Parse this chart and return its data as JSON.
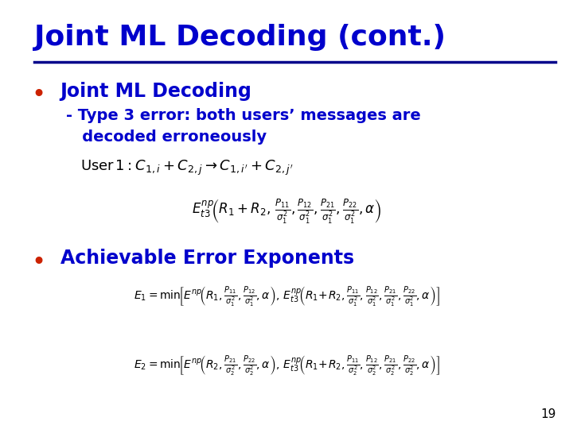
{
  "bg_color": "#ffffff",
  "title": "Joint ML Decoding (cont.)",
  "title_color": "#0000cc",
  "title_fontsize": 26,
  "line_color": "#00008B",
  "bullet_color": "#cc2200",
  "bullet1_text": "Joint ML Decoding",
  "bullet1_color": "#0000cc",
  "sub_bullet_text": "- Type 3 error: both users’ messages are\n   decoded erroneously",
  "sub_bullet_color": "#0000cc",
  "bullet2_text": "Achievable Error Exponents",
  "bullet2_color": "#0000cc",
  "page_num": "19",
  "math_color": "#000000",
  "math_fontsize": 13
}
